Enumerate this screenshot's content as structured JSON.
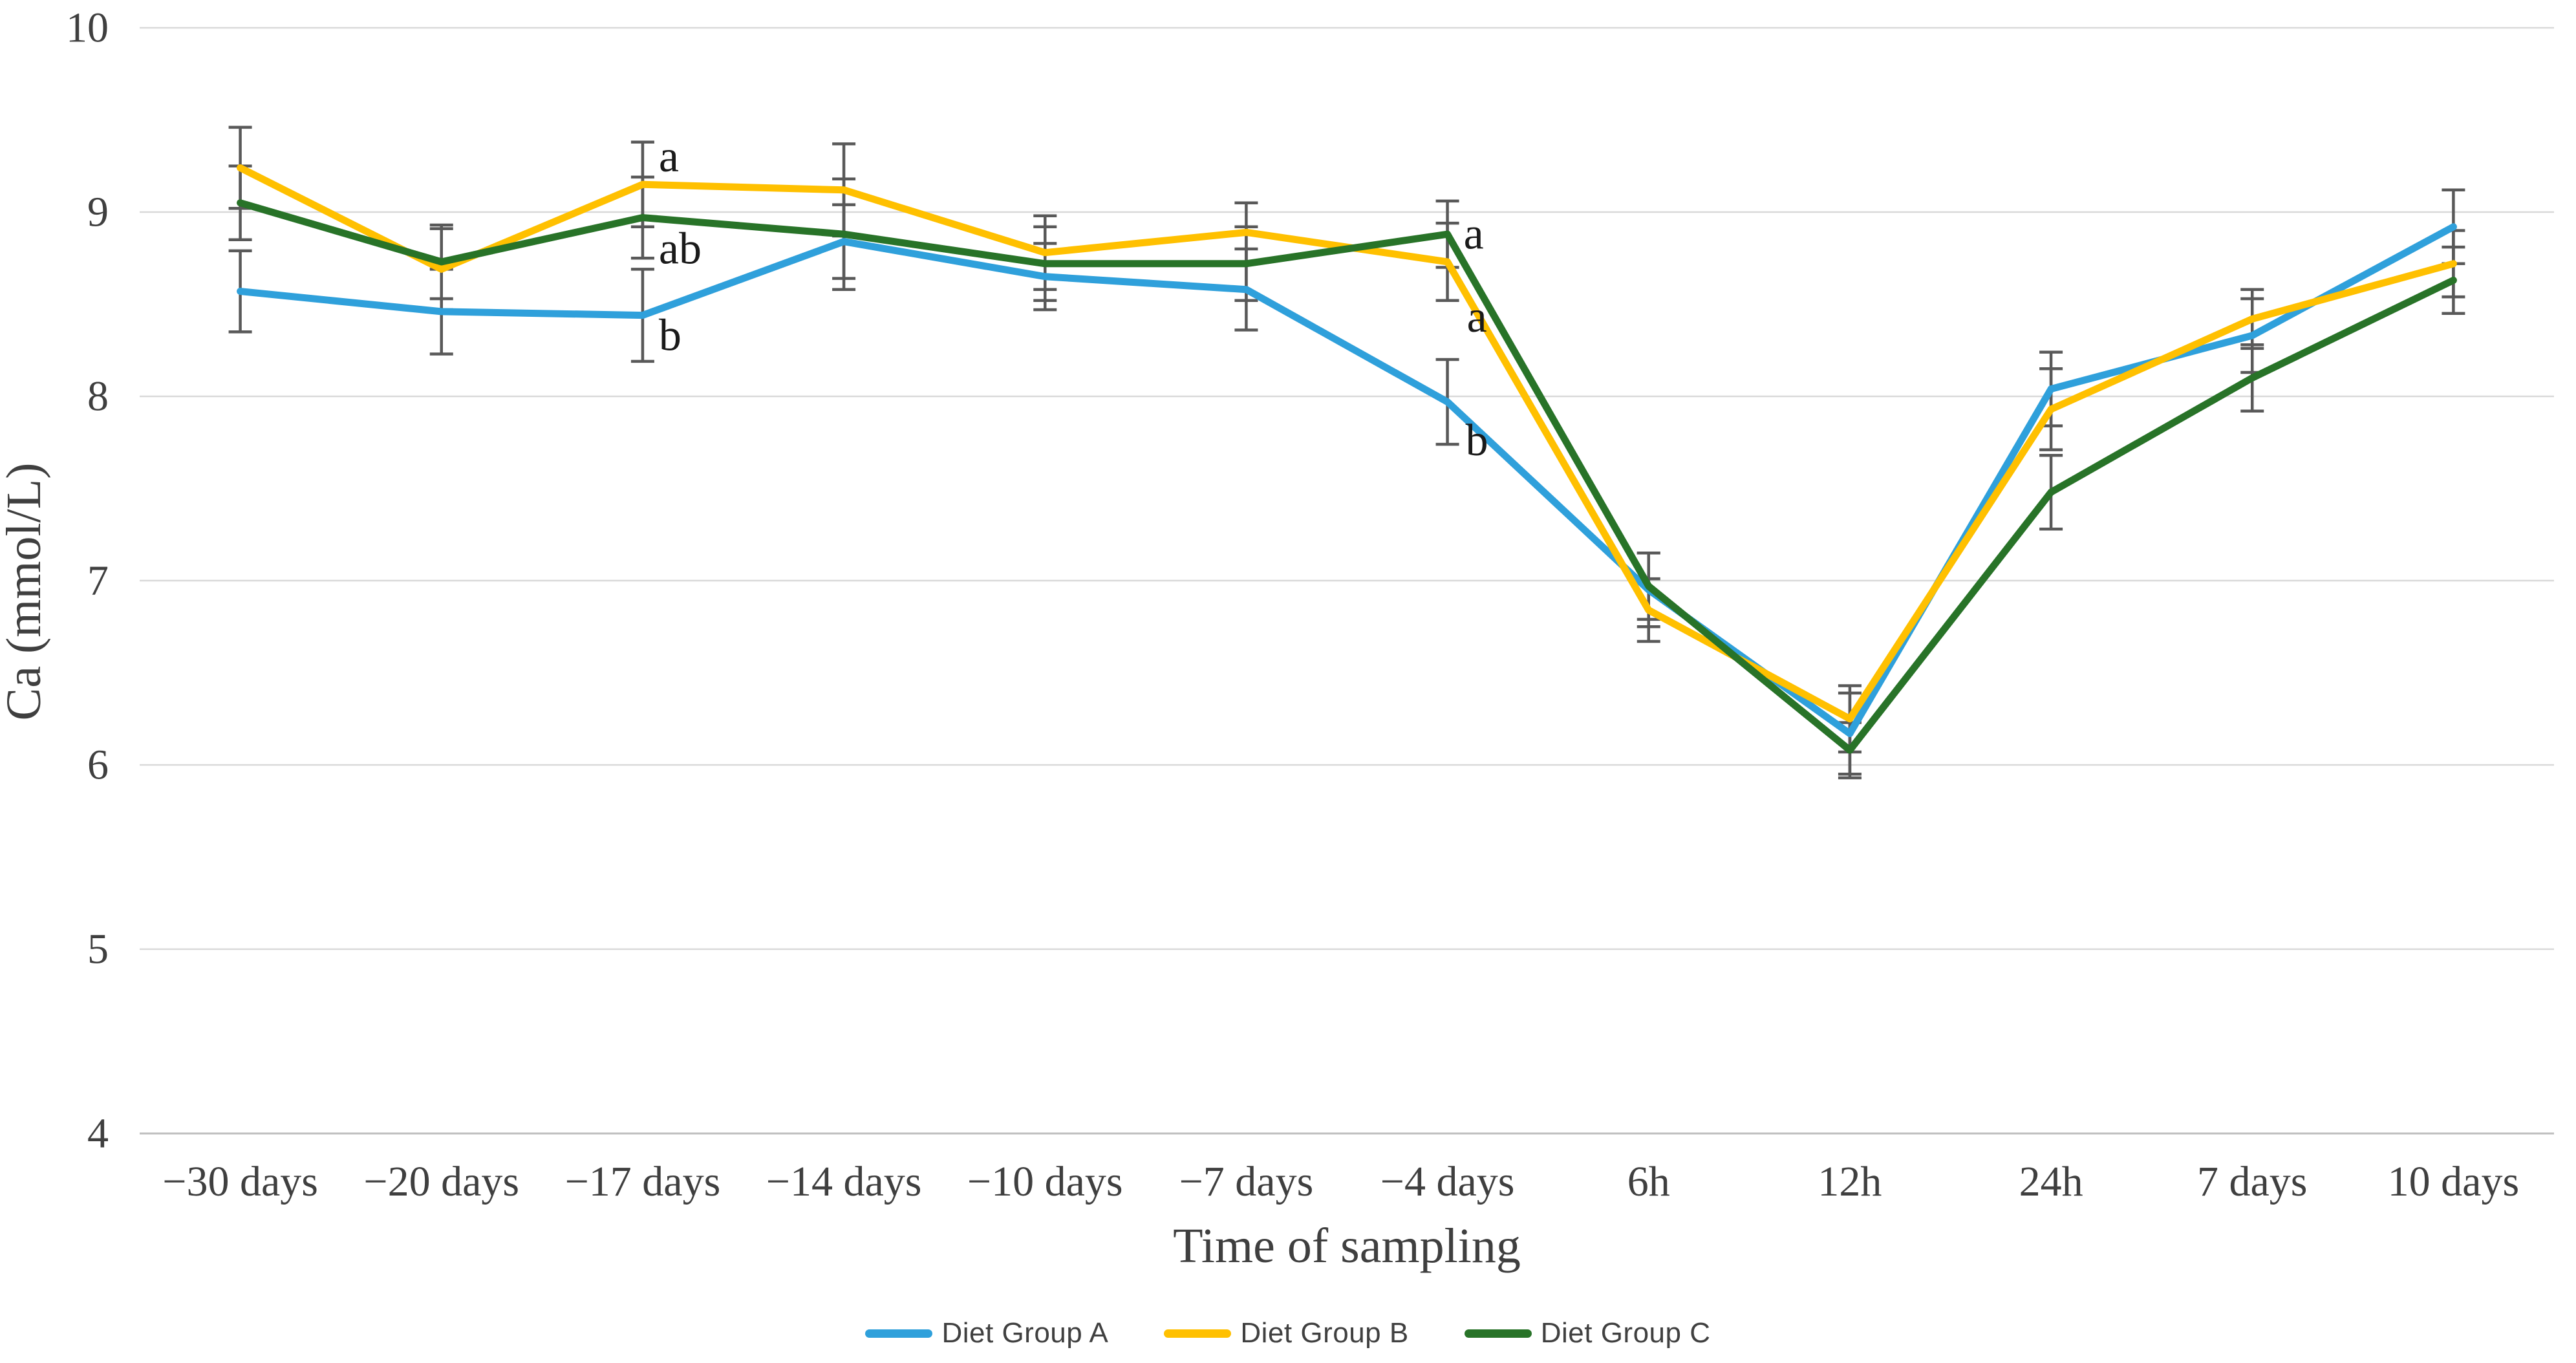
{
  "chart_data": {
    "type": "line",
    "title": "",
    "xlabel": "Time of sampling",
    "ylabel": "Ca (mmol/L)",
    "ylim": [
      4,
      10
    ],
    "y_ticks": [
      4,
      5,
      6,
      7,
      8,
      9,
      10
    ],
    "grid": true,
    "legend_position": "bottom",
    "categories": [
      "−30 days",
      "−20 days",
      "−17 days",
      "−14 days",
      "−10 days",
      "−7 days",
      "−4 days",
      "6h",
      "12h",
      "24h",
      "7 days",
      "10 days"
    ],
    "series": [
      {
        "name": "Diet Group A",
        "color": "#2FA0DB",
        "values": [
          8.57,
          8.46,
          8.44,
          8.84,
          8.65,
          8.58,
          7.97,
          6.95,
          6.17,
          8.04,
          8.33,
          8.92
        ],
        "errors": [
          0.22,
          0.23,
          0.25,
          0.2,
          0.18,
          0.22,
          0.23,
          0.2,
          0.22,
          0.2,
          0.2,
          0.2
        ]
      },
      {
        "name": "Diet Group B",
        "color": "#FFC000",
        "values": [
          9.24,
          8.69,
          9.15,
          9.12,
          8.78,
          8.89,
          8.73,
          6.84,
          6.25,
          7.93,
          8.42,
          8.72
        ],
        "errors": [
          0.22,
          0.22,
          0.23,
          0.25,
          0.2,
          0.16,
          0.21,
          0.17,
          0.18,
          0.22,
          0.16,
          0.18
        ]
      },
      {
        "name": "Diet Group C",
        "color": "#287328",
        "values": [
          9.05,
          8.73,
          8.97,
          8.88,
          8.72,
          8.72,
          8.88,
          6.97,
          6.08,
          7.48,
          8.1,
          8.63
        ],
        "errors": [
          0.2,
          0.2,
          0.22,
          0.3,
          0.2,
          0.2,
          0.18,
          0.18,
          0.15,
          0.2,
          0.18,
          0.18
        ]
      }
    ],
    "annotations": [
      {
        "category": "−17 days",
        "label": "a",
        "value": 9.3,
        "dx": 25
      },
      {
        "category": "−17 days",
        "label": "ab",
        "value": 8.8,
        "dx": 25
      },
      {
        "category": "−17 days",
        "label": "b",
        "value": 8.33,
        "dx": 25
      },
      {
        "category": "−4 days",
        "label": "a",
        "value": 8.88,
        "dx": 25
      },
      {
        "category": "−4 days",
        "label": "a",
        "value": 8.43,
        "dx": 30
      },
      {
        "category": "−4 days",
        "label": "b",
        "value": 7.76,
        "dx": 28
      }
    ],
    "colors": {
      "gridline": "#D9D9D9",
      "axis_line": "#BFBFBF",
      "error_bar": "#595959",
      "text": "#3F3F3F"
    }
  }
}
